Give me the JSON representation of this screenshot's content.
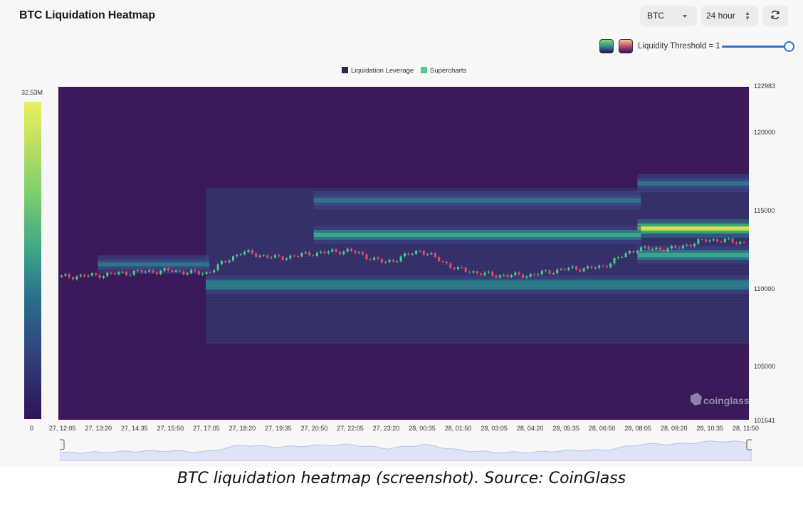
{
  "header": {
    "title": "BTC Liquidation Heatmap",
    "coin_select": "BTC",
    "range_select": "24 hour",
    "refresh_icon": "refresh-icon"
  },
  "threshold": {
    "label": "Liquidity Threshold = 1",
    "value": 1
  },
  "legend": {
    "items": [
      {
        "label": "Liquidation Leverage",
        "color": "#3b1a5c"
      },
      {
        "label": "Supercharts",
        "color": "#4fce8a"
      }
    ]
  },
  "scale": {
    "max_label": "32.53M",
    "min_label": "0"
  },
  "watermark": "coinglass",
  "caption": "BTC liquidation heatmap (screenshot). Source: CoinGlass",
  "chart_data": {
    "type": "heatmap",
    "title": "BTC Liquidation Heatmap",
    "y_ticks": [
      "122983",
      "120000",
      "115000",
      "110000",
      "105000",
      "101641"
    ],
    "y_range": [
      101641,
      122983
    ],
    "x_ticks": [
      "27, 12:05",
      "27, 13:20",
      "27, 14:35",
      "27, 15:50",
      "27, 17:05",
      "27, 18:20",
      "27, 19:35",
      "27, 20:50",
      "27, 22:05",
      "27, 23:20",
      "28, 00:35",
      "28, 01:50",
      "28, 03:05",
      "28, 04:20",
      "28, 05:35",
      "28, 06:50",
      "28, 08:05",
      "28, 09:20",
      "28, 10:35",
      "28, 11:50"
    ],
    "color_range": [
      0,
      "32.53M"
    ],
    "bands": [
      {
        "price": 113900,
        "from_tick": 16,
        "to_tick": 19,
        "intensity": 1.0
      },
      {
        "price": 113500,
        "from_tick": 7,
        "to_tick": 16,
        "intensity": 0.55
      },
      {
        "price": 112200,
        "from_tick": 16,
        "to_tick": 19,
        "intensity": 0.5
      },
      {
        "price": 110300,
        "from_tick": 4,
        "to_tick": 19,
        "intensity": 0.45
      },
      {
        "price": 111600,
        "from_tick": 1,
        "to_tick": 4,
        "intensity": 0.35
      },
      {
        "price": 115700,
        "from_tick": 7,
        "to_tick": 16,
        "intensity": 0.3
      },
      {
        "price": 116800,
        "from_tick": 16,
        "to_tick": 19,
        "intensity": 0.3
      }
    ],
    "price_series": [
      110800,
      110900,
      111100,
      111200,
      111000,
      112400,
      112000,
      112300,
      112500,
      111700,
      112500,
      111300,
      110900,
      110900,
      111300,
      111400,
      112600,
      112600,
      113200,
      113000
    ]
  }
}
